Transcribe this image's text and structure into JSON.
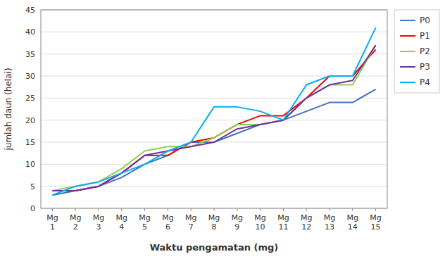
{
  "chart_data": {
    "type": "line",
    "categories": [
      "Mg\n1",
      "Mg\n2",
      "Mg\n3",
      "Mg\n4",
      "Mg\n5",
      "Mg\n6",
      "Mg\n7",
      "Mg\n8",
      "Mg\n9",
      "Mg\n10",
      "Mg\n11",
      "Mg\n12",
      "Mg\n13",
      "Mg\n14",
      "Mg\n15"
    ],
    "series": [
      {
        "name": "P0",
        "color": "#4472C4",
        "values": [
          3,
          4,
          5,
          7,
          10,
          12,
          15,
          15,
          17,
          19,
          20,
          22,
          24,
          24,
          27
        ]
      },
      {
        "name": "P1",
        "color": "#FF0000",
        "values": [
          4,
          4,
          5,
          8,
          12,
          12,
          15,
          16,
          19,
          21,
          21,
          25,
          30,
          30,
          36
        ]
      },
      {
        "name": "P2",
        "color": "#92D050",
        "values": [
          4,
          5,
          6,
          9,
          13,
          14,
          14,
          16,
          19,
          19,
          20,
          25,
          28,
          28,
          37
        ]
      },
      {
        "name": "P3",
        "color": "#7030A0",
        "values": [
          4,
          4,
          5,
          8,
          12,
          13,
          14,
          15,
          18,
          19,
          20,
          25,
          28,
          29,
          37
        ]
      },
      {
        "name": "P4",
        "color": "#00B0F0",
        "values": [
          3,
          5,
          6,
          8,
          10,
          13,
          15,
          23,
          23,
          22,
          20,
          28,
          30,
          30,
          41
        ]
      }
    ],
    "ylabel": "jumlah daun (helai)",
    "xlabel": "Waktu pengamatan (mg)",
    "ylim": [
      0,
      45
    ],
    "yticks": [
      0,
      5,
      10,
      15,
      20,
      25,
      30,
      35,
      40,
      45
    ],
    "grid": true,
    "legend": "right"
  }
}
